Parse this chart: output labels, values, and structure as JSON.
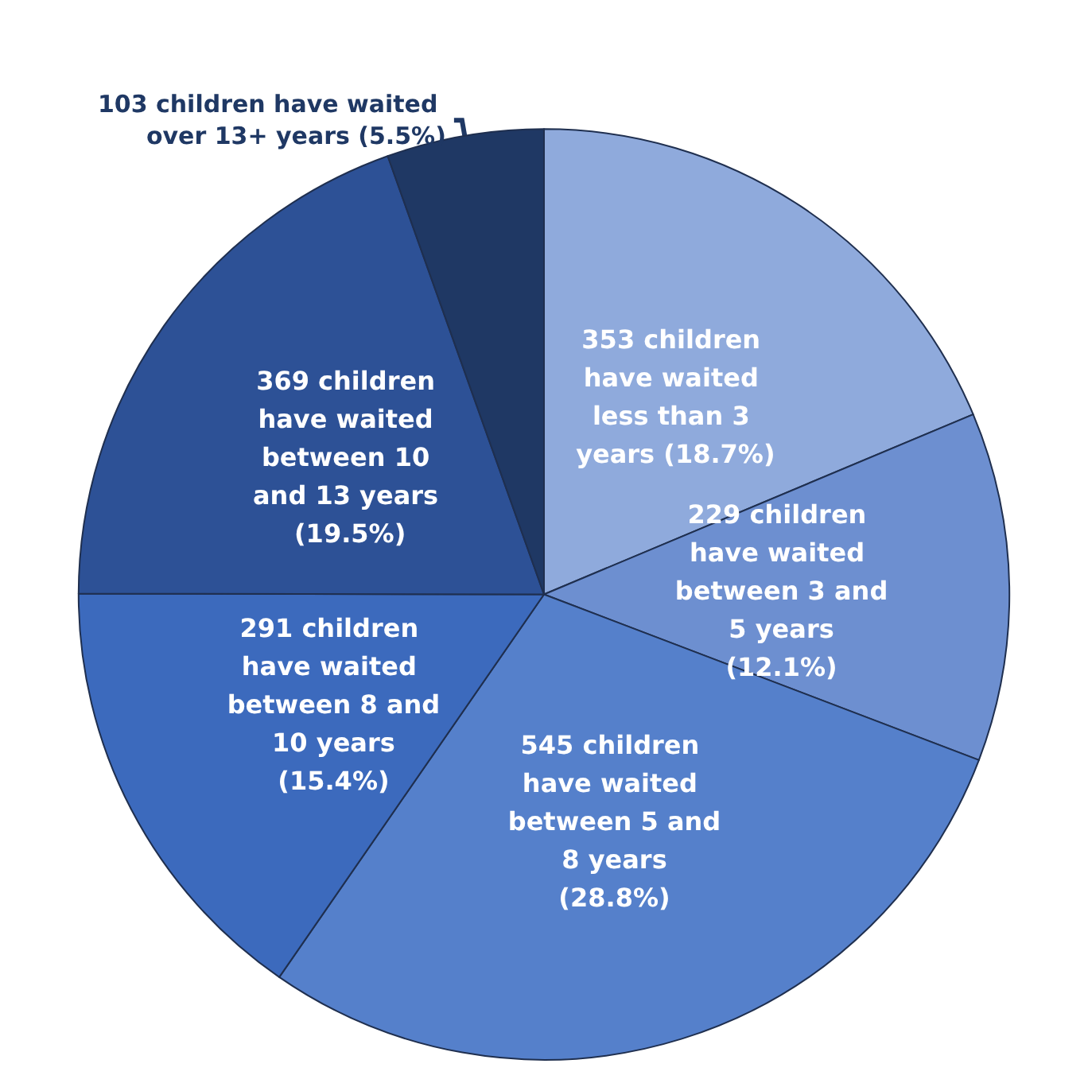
{
  "chart_data": {
    "type": "pie",
    "categories": [
      "353 children have waited less than 3 years (18.7%)",
      "229 children have waited between 3 and 5 years (12.1%)",
      "545 children have waited between 5 and 8 years (28.8%)",
      "291 children have waited between 8 and 10 years (15.4%)",
      "369 children have waited between 10 and 13 years (19.5%)",
      "103 children have waited over 13+ years (5.5%)"
    ],
    "values": [
      353,
      229,
      545,
      291,
      369,
      103
    ],
    "colors": [
      "#8faadc",
      "#6d8fd0",
      "#5580cb",
      "#3c6abd",
      "#2d5196",
      "#1f3864"
    ],
    "legend": false
  }
}
